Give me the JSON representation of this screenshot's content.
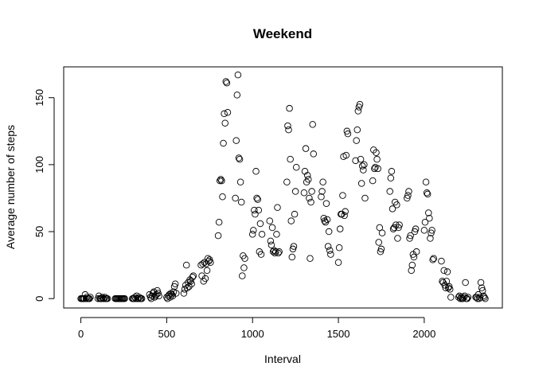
{
  "chart_data": {
    "type": "scatter",
    "title": "Weekend",
    "xlabel": "Interval",
    "ylabel": "Average number of steps",
    "xlim": [
      -100,
      2455
    ],
    "ylim": [
      -7,
      173
    ],
    "xticks": [
      0,
      500,
      1000,
      1500,
      2000
    ],
    "yticks": [
      0,
      50,
      100,
      150
    ],
    "grid": false,
    "legend": "none",
    "marker": "open-circle",
    "colors": {
      "axis": "#000000",
      "marker": "#000000",
      "background": "#ffffff"
    },
    "points": [
      [
        0,
        0
      ],
      [
        5,
        0
      ],
      [
        10,
        0
      ],
      [
        15,
        0
      ],
      [
        20,
        0
      ],
      [
        25,
        3
      ],
      [
        30,
        0
      ],
      [
        35,
        1
      ],
      [
        40,
        0
      ],
      [
        45,
        0
      ],
      [
        50,
        0
      ],
      [
        55,
        1
      ],
      [
        100,
        0
      ],
      [
        105,
        2
      ],
      [
        110,
        0
      ],
      [
        115,
        0
      ],
      [
        120,
        0
      ],
      [
        125,
        1
      ],
      [
        130,
        0
      ],
      [
        135,
        0
      ],
      [
        140,
        1
      ],
      [
        145,
        0
      ],
      [
        150,
        0
      ],
      [
        155,
        0
      ],
      [
        200,
        0
      ],
      [
        205,
        0
      ],
      [
        210,
        0
      ],
      [
        215,
        0
      ],
      [
        220,
        0
      ],
      [
        225,
        0
      ],
      [
        230,
        0
      ],
      [
        235,
        0
      ],
      [
        240,
        0
      ],
      [
        245,
        0
      ],
      [
        250,
        0
      ],
      [
        255,
        0
      ],
      [
        300,
        0
      ],
      [
        305,
        0
      ],
      [
        310,
        0
      ],
      [
        315,
        1
      ],
      [
        320,
        0
      ],
      [
        325,
        2
      ],
      [
        330,
        0
      ],
      [
        335,
        0
      ],
      [
        340,
        1
      ],
      [
        345,
        0
      ],
      [
        350,
        0
      ],
      [
        355,
        0
      ],
      [
        400,
        3
      ],
      [
        405,
        1
      ],
      [
        410,
        0
      ],
      [
        415,
        2
      ],
      [
        420,
        4
      ],
      [
        425,
        5
      ],
      [
        430,
        1
      ],
      [
        435,
        2
      ],
      [
        440,
        3
      ],
      [
        445,
        6
      ],
      [
        450,
        4
      ],
      [
        455,
        2
      ],
      [
        500,
        1
      ],
      [
        505,
        0
      ],
      [
        510,
        2
      ],
      [
        515,
        3
      ],
      [
        520,
        1
      ],
      [
        525,
        4
      ],
      [
        530,
        3
      ],
      [
        535,
        2
      ],
      [
        540,
        5
      ],
      [
        545,
        9
      ],
      [
        550,
        11
      ],
      [
        555,
        4
      ],
      [
        600,
        4
      ],
      [
        605,
        7
      ],
      [
        610,
        10
      ],
      [
        615,
        25
      ],
      [
        620,
        8
      ],
      [
        625,
        12
      ],
      [
        630,
        9
      ],
      [
        635,
        14
      ],
      [
        640,
        13
      ],
      [
        645,
        11
      ],
      [
        650,
        16
      ],
      [
        655,
        17
      ],
      [
        700,
        25
      ],
      [
        705,
        17
      ],
      [
        710,
        26
      ],
      [
        715,
        13
      ],
      [
        720,
        27
      ],
      [
        725,
        15
      ],
      [
        730,
        26
      ],
      [
        735,
        21
      ],
      [
        740,
        30
      ],
      [
        745,
        28
      ],
      [
        750,
        29
      ],
      [
        755,
        27
      ],
      [
        800,
        47
      ],
      [
        805,
        57
      ],
      [
        810,
        88
      ],
      [
        815,
        89
      ],
      [
        820,
        88
      ],
      [
        825,
        76
      ],
      [
        830,
        116
      ],
      [
        835,
        138
      ],
      [
        840,
        131
      ],
      [
        845,
        162
      ],
      [
        850,
        161
      ],
      [
        855,
        139
      ],
      [
        900,
        75
      ],
      [
        905,
        118
      ],
      [
        910,
        152
      ],
      [
        915,
        167
      ],
      [
        920,
        105
      ],
      [
        925,
        104
      ],
      [
        930,
        87
      ],
      [
        935,
        72
      ],
      [
        940,
        17
      ],
      [
        945,
        32
      ],
      [
        950,
        23
      ],
      [
        955,
        30
      ],
      [
        1000,
        48
      ],
      [
        1005,
        51
      ],
      [
        1010,
        66
      ],
      [
        1015,
        63
      ],
      [
        1020,
        95
      ],
      [
        1025,
        75
      ],
      [
        1030,
        74
      ],
      [
        1035,
        66
      ],
      [
        1040,
        35
      ],
      [
        1045,
        56
      ],
      [
        1050,
        33
      ],
      [
        1055,
        48
      ],
      [
        1100,
        58
      ],
      [
        1105,
        43
      ],
      [
        1110,
        40
      ],
      [
        1115,
        53
      ],
      [
        1120,
        35
      ],
      [
        1125,
        36
      ],
      [
        1130,
        34
      ],
      [
        1135,
        35
      ],
      [
        1140,
        48
      ],
      [
        1145,
        68
      ],
      [
        1150,
        34
      ],
      [
        1155,
        35
      ],
      [
        1200,
        87
      ],
      [
        1205,
        129
      ],
      [
        1210,
        126
      ],
      [
        1215,
        142
      ],
      [
        1220,
        104
      ],
      [
        1225,
        58
      ],
      [
        1230,
        31
      ],
      [
        1235,
        37
      ],
      [
        1240,
        39
      ],
      [
        1245,
        63
      ],
      [
        1250,
        80
      ],
      [
        1255,
        98
      ],
      [
        1300,
        79
      ],
      [
        1305,
        95
      ],
      [
        1310,
        112
      ],
      [
        1315,
        87
      ],
      [
        1320,
        92
      ],
      [
        1325,
        89
      ],
      [
        1330,
        75
      ],
      [
        1335,
        30
      ],
      [
        1340,
        72
      ],
      [
        1345,
        80
      ],
      [
        1350,
        130
      ],
      [
        1355,
        108
      ],
      [
        1400,
        76
      ],
      [
        1405,
        80
      ],
      [
        1410,
        87
      ],
      [
        1415,
        60
      ],
      [
        1420,
        58
      ],
      [
        1425,
        57
      ],
      [
        1430,
        71
      ],
      [
        1435,
        59
      ],
      [
        1440,
        39
      ],
      [
        1445,
        50
      ],
      [
        1450,
        36
      ],
      [
        1455,
        33
      ],
      [
        1500,
        27
      ],
      [
        1505,
        38
      ],
      [
        1510,
        52
      ],
      [
        1515,
        63
      ],
      [
        1520,
        63
      ],
      [
        1525,
        77
      ],
      [
        1530,
        106
      ],
      [
        1535,
        62
      ],
      [
        1540,
        65
      ],
      [
        1545,
        107
      ],
      [
        1550,
        125
      ],
      [
        1555,
        123
      ],
      [
        1600,
        103
      ],
      [
        1605,
        118
      ],
      [
        1610,
        126
      ],
      [
        1615,
        140
      ],
      [
        1620,
        143
      ],
      [
        1625,
        145
      ],
      [
        1630,
        104
      ],
      [
        1635,
        86
      ],
      [
        1640,
        99
      ],
      [
        1645,
        96
      ],
      [
        1650,
        100
      ],
      [
        1655,
        75
      ],
      [
        1700,
        88
      ],
      [
        1705,
        111
      ],
      [
        1710,
        97
      ],
      [
        1715,
        98
      ],
      [
        1720,
        109
      ],
      [
        1725,
        104
      ],
      [
        1730,
        97
      ],
      [
        1735,
        42
      ],
      [
        1740,
        53
      ],
      [
        1745,
        35
      ],
      [
        1750,
        37
      ],
      [
        1755,
        49
      ],
      [
        1800,
        80
      ],
      [
        1805,
        90
      ],
      [
        1810,
        95
      ],
      [
        1815,
        67
      ],
      [
        1820,
        52
      ],
      [
        1825,
        53
      ],
      [
        1830,
        72
      ],
      [
        1835,
        55
      ],
      [
        1840,
        70
      ],
      [
        1845,
        45
      ],
      [
        1850,
        53
      ],
      [
        1855,
        55
      ],
      [
        1900,
        75
      ],
      [
        1905,
        77
      ],
      [
        1910,
        80
      ],
      [
        1915,
        45
      ],
      [
        1920,
        47
      ],
      [
        1925,
        21
      ],
      [
        1930,
        25
      ],
      [
        1935,
        33
      ],
      [
        1940,
        31
      ],
      [
        1945,
        50
      ],
      [
        1950,
        52
      ],
      [
        1955,
        35
      ],
      [
        2000,
        51
      ],
      [
        2005,
        57
      ],
      [
        2010,
        87
      ],
      [
        2015,
        79
      ],
      [
        2020,
        78
      ],
      [
        2025,
        64
      ],
      [
        2030,
        60
      ],
      [
        2035,
        45
      ],
      [
        2040,
        49
      ],
      [
        2045,
        51
      ],
      [
        2050,
        29
      ],
      [
        2055,
        30
      ],
      [
        2100,
        28
      ],
      [
        2105,
        13
      ],
      [
        2110,
        12
      ],
      [
        2115,
        21
      ],
      [
        2120,
        10
      ],
      [
        2125,
        8
      ],
      [
        2130,
        13
      ],
      [
        2135,
        20
      ],
      [
        2140,
        8
      ],
      [
        2145,
        9
      ],
      [
        2150,
        7
      ],
      [
        2155,
        1
      ],
      [
        2200,
        1
      ],
      [
        2205,
        2
      ],
      [
        2210,
        0
      ],
      [
        2215,
        1
      ],
      [
        2220,
        0
      ],
      [
        2225,
        0
      ],
      [
        2230,
        1
      ],
      [
        2235,
        2
      ],
      [
        2240,
        12
      ],
      [
        2245,
        0
      ],
      [
        2250,
        0
      ],
      [
        2255,
        1
      ],
      [
        2300,
        1
      ],
      [
        2305,
        1
      ],
      [
        2310,
        0
      ],
      [
        2315,
        3
      ],
      [
        2320,
        0
      ],
      [
        2325,
        1
      ],
      [
        2330,
        12
      ],
      [
        2335,
        8
      ],
      [
        2340,
        6
      ],
      [
        2345,
        2
      ],
      [
        2350,
        1
      ],
      [
        2355,
        0
      ]
    ]
  }
}
